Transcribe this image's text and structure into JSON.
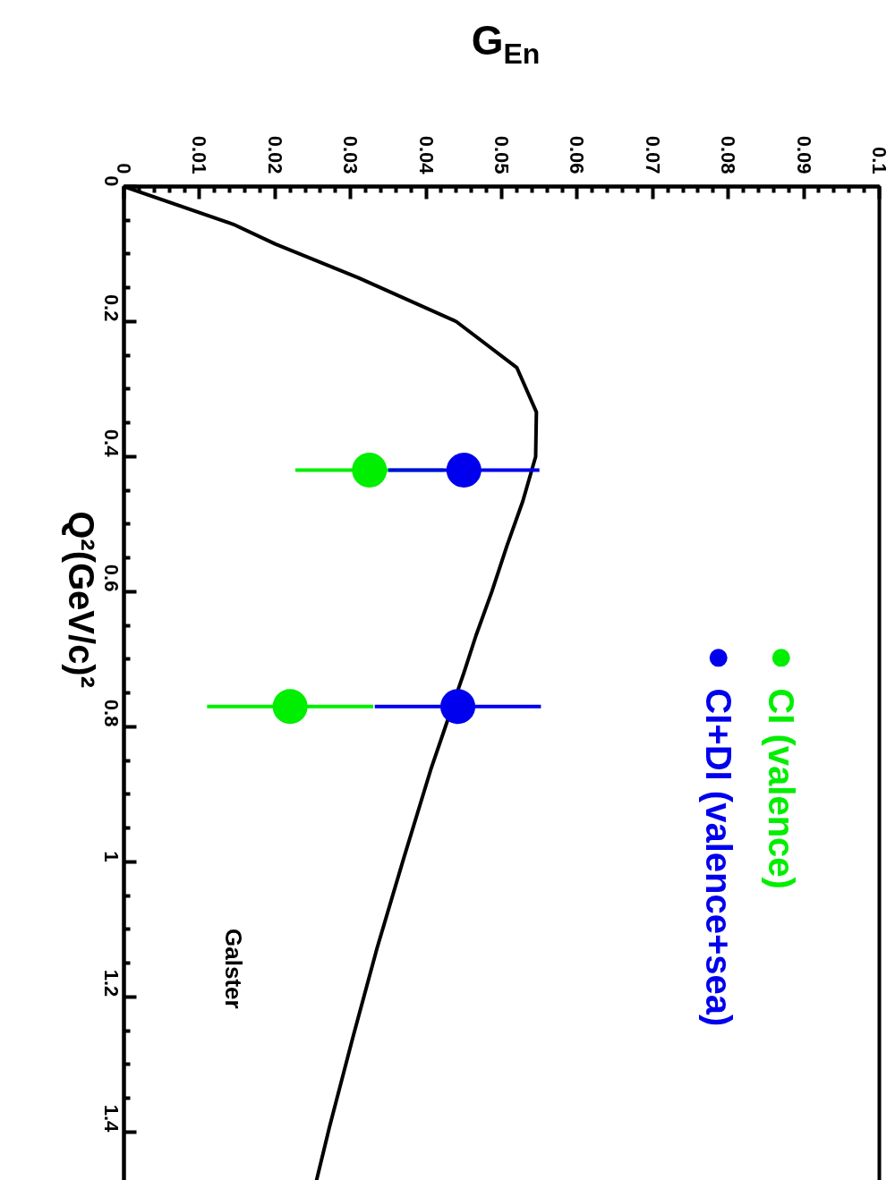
{
  "chart_data": {
    "type": "scatter",
    "xlabel": "G$_{En}$",
    "ylabel": "Q²(GeV/c)²",
    "xlim": [
      0,
      0.1
    ],
    "ylim": [
      1.485,
      0
    ],
    "xticks": [
      0,
      0.01,
      0.02,
      0.03,
      0.04,
      0.05,
      0.06,
      0.07,
      0.08,
      0.09,
      0.1
    ],
    "yticks": [
      0,
      0.2,
      0.4,
      0.6,
      0.8,
      1,
      1.2,
      1.4
    ],
    "grid": false,
    "legend": "right",
    "annotations": [
      "Galster"
    ],
    "series": [
      {
        "type": "line",
        "color": "#000000",
        "x": [
          0,
          0.0145,
          0.02,
          0.031,
          0.044,
          0.052,
          0.0546,
          0.0545,
          0.0528,
          0.0507,
          0.0487,
          0.0466,
          0.045,
          0.0406,
          0.037,
          0.0335,
          0.0303,
          0.0272,
          0.0252
        ],
        "values": [
          0,
          0.056,
          0.085,
          0.135,
          0.2,
          0.268,
          0.334,
          0.4,
          0.466,
          0.532,
          0.6,
          0.665,
          0.72,
          0.864,
          0.996,
          1.128,
          1.26,
          1.393,
          1.485
        ]
      },
      {
        "name": "CI (valence)",
        "marker": "circle",
        "color": "#00ee00",
        "x": [
          0.0325,
          0.022
        ],
        "values": [
          0.42,
          0.77
        ],
        "xerrors": [
          0.0098,
          0.011
        ]
      },
      {
        "name": "CI+DI (valence+sea)",
        "marker": "circle",
        "color": "#0000ee",
        "x": [
          0.045,
          0.0442
        ],
        "values": [
          0.42,
          0.77
        ],
        "xerrors": [
          0.01,
          0.011
        ]
      }
    ]
  }
}
